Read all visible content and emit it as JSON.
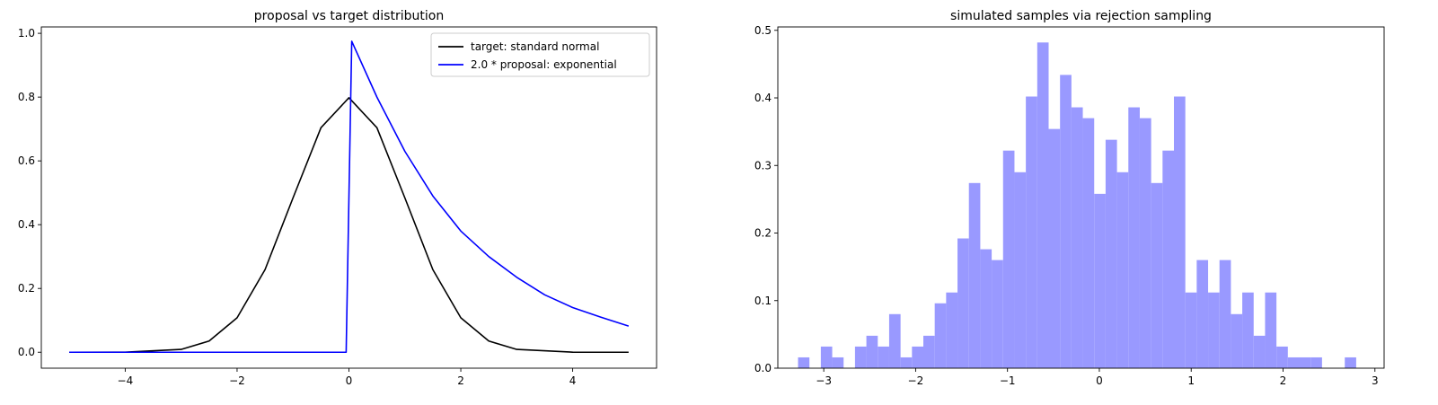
{
  "chart_data": [
    {
      "type": "line",
      "title": "proposal vs target distribution",
      "xlabel": "",
      "ylabel": "",
      "xlim": [
        -5.5,
        5.5
      ],
      "ylim": [
        -0.05,
        1.02
      ],
      "xticks": [
        -4,
        -2,
        0,
        2,
        4
      ],
      "xtick_labels": [
        "−4",
        "−2",
        "0",
        "2",
        "4"
      ],
      "yticks": [
        0.0,
        0.2,
        0.4,
        0.6,
        0.8,
        1.0
      ],
      "ytick_labels": [
        "0.0",
        "0.2",
        "0.4",
        "0.6",
        "0.8",
        "1.0"
      ],
      "grid": false,
      "legend_position": "top-right",
      "series": [
        {
          "name": "target: standard normal",
          "color": "#000000",
          "x": [
            -5,
            -4,
            -3,
            -2.5,
            -2,
            -1.5,
            -1,
            -0.5,
            0,
            0.5,
            1,
            1.5,
            2,
            2.5,
            3,
            4,
            5
          ],
          "y": [
            0.0,
            0.0003,
            0.0089,
            0.0351,
            0.108,
            0.259,
            0.484,
            0.704,
            0.798,
            0.704,
            0.484,
            0.259,
            0.108,
            0.0351,
            0.0089,
            0.0003,
            0.0
          ]
        },
        {
          "name": "2.0 * proposal: exponential",
          "color": "#0000ff",
          "x": [
            -5,
            -0.05,
            0.05,
            0.5,
            1,
            1.5,
            2,
            2.5,
            3,
            3.5,
            4,
            4.5,
            5
          ],
          "y": [
            0.0,
            0.0,
            0.975,
            0.8,
            0.63,
            0.49,
            0.38,
            0.3,
            0.235,
            0.18,
            0.14,
            0.11,
            0.082
          ]
        }
      ]
    },
    {
      "type": "bar",
      "title": "simulated samples via rejection sampling",
      "xlabel": "",
      "ylabel": "",
      "xlim": [
        -3.5,
        3.1
      ],
      "ylim": [
        0.0,
        0.505
      ],
      "xticks": [
        -3,
        -2,
        -1,
        0,
        1,
        2,
        3
      ],
      "xtick_labels": [
        "−3",
        "−2",
        "−1",
        "0",
        "1",
        "2",
        "3"
      ],
      "yticks": [
        0.0,
        0.1,
        0.2,
        0.3,
        0.4,
        0.5
      ],
      "ytick_labels": [
        "0.0",
        "0.1",
        "0.2",
        "0.3",
        "0.4",
        "0.5"
      ],
      "grid": false,
      "bar_color": "#9999ff",
      "bin_start": -3.28,
      "bin_width": 0.124,
      "values": [
        0.016,
        0.0,
        0.032,
        0.016,
        0.0,
        0.032,
        0.048,
        0.032,
        0.08,
        0.016,
        0.032,
        0.048,
        0.096,
        0.112,
        0.192,
        0.274,
        0.176,
        0.16,
        0.322,
        0.29,
        0.402,
        0.482,
        0.354,
        0.434,
        0.386,
        0.37,
        0.258,
        0.338,
        0.29,
        0.386,
        0.37,
        0.274,
        0.322,
        0.402,
        0.112,
        0.16,
        0.112,
        0.16,
        0.08,
        0.112,
        0.048,
        0.112,
        0.032,
        0.016,
        0.016,
        0.016,
        0.0,
        0.0,
        0.016,
        0.0
      ]
    }
  ]
}
